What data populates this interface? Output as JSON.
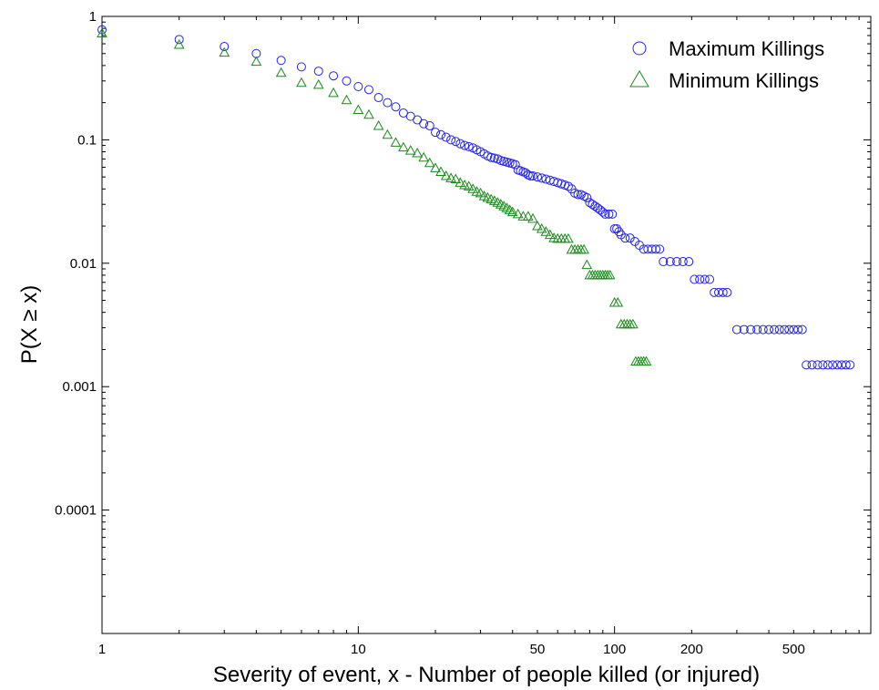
{
  "chart_data": {
    "type": "scatter",
    "xscale": "log",
    "yscale": "log",
    "xlim": [
      1,
      1000
    ],
    "ylim": [
      1e-05,
      1
    ],
    "xlabel": "Severity of event, x - Number of people killed (or injured)",
    "ylabel": "P(X ≥ x)",
    "x_ticks": [
      {
        "value": 1,
        "label": "1"
      },
      {
        "value": 10,
        "label": "10"
      },
      {
        "value": 50,
        "label": "50"
      },
      {
        "value": 100,
        "label": "100"
      },
      {
        "value": 200,
        "label": "200"
      },
      {
        "value": 500,
        "label": "500"
      }
    ],
    "y_ticks": [
      {
        "value": 1,
        "label": "1"
      },
      {
        "value": 0.1,
        "label": "0.1"
      },
      {
        "value": 0.01,
        "label": "0.01"
      },
      {
        "value": 0.001,
        "label": "0.001"
      },
      {
        "value": 0.0001,
        "label": "0.0001"
      }
    ],
    "legend_position": "top-right",
    "series": [
      {
        "name": "Maximum Killings",
        "marker": "circle",
        "color": "#2424e0",
        "points": [
          [
            1,
            0.78
          ],
          [
            2,
            0.65
          ],
          [
            3,
            0.57
          ],
          [
            4,
            0.5
          ],
          [
            5,
            0.44
          ],
          [
            6,
            0.39
          ],
          [
            7,
            0.36
          ],
          [
            8,
            0.33
          ],
          [
            9,
            0.3
          ],
          [
            10,
            0.27
          ],
          [
            11,
            0.255
          ],
          [
            12,
            0.22
          ],
          [
            13,
            0.2
          ],
          [
            14,
            0.185
          ],
          [
            15,
            0.165
          ],
          [
            16,
            0.155
          ],
          [
            17,
            0.145
          ],
          [
            18,
            0.135
          ],
          [
            19,
            0.13
          ],
          [
            20,
            0.115
          ],
          [
            21,
            0.11
          ],
          [
            22,
            0.105
          ],
          [
            23,
            0.1
          ],
          [
            24,
            0.097
          ],
          [
            25,
            0.093
          ],
          [
            26,
            0.09
          ],
          [
            27,
            0.088
          ],
          [
            28,
            0.086
          ],
          [
            29,
            0.083
          ],
          [
            30,
            0.08
          ],
          [
            31,
            0.077
          ],
          [
            32,
            0.074
          ],
          [
            33,
            0.072
          ],
          [
            34,
            0.071
          ],
          [
            35,
            0.07
          ],
          [
            36,
            0.068
          ],
          [
            37,
            0.067
          ],
          [
            38,
            0.066
          ],
          [
            39,
            0.065
          ],
          [
            40,
            0.064
          ],
          [
            41,
            0.063
          ],
          [
            42,
            0.057
          ],
          [
            43,
            0.056
          ],
          [
            44,
            0.055
          ],
          [
            45,
            0.054
          ],
          [
            46,
            0.052
          ],
          [
            47,
            0.051
          ],
          [
            48,
            0.051
          ],
          [
            50,
            0.05
          ],
          [
            52,
            0.049
          ],
          [
            54,
            0.048
          ],
          [
            56,
            0.047
          ],
          [
            58,
            0.046
          ],
          [
            60,
            0.045
          ],
          [
            62,
            0.044
          ],
          [
            64,
            0.043
          ],
          [
            66,
            0.042
          ],
          [
            68,
            0.04
          ],
          [
            70,
            0.037
          ],
          [
            72,
            0.036
          ],
          [
            74,
            0.036
          ],
          [
            76,
            0.035
          ],
          [
            78,
            0.034
          ],
          [
            80,
            0.031
          ],
          [
            82,
            0.03
          ],
          [
            84,
            0.029
          ],
          [
            86,
            0.028
          ],
          [
            88,
            0.027
          ],
          [
            90,
            0.026
          ],
          [
            92,
            0.025
          ],
          [
            95,
            0.025
          ],
          [
            98,
            0.025
          ],
          [
            100,
            0.019
          ],
          [
            102,
            0.019
          ],
          [
            104,
            0.018
          ],
          [
            106,
            0.017
          ],
          [
            110,
            0.016
          ],
          [
            115,
            0.016
          ],
          [
            120,
            0.015
          ],
          [
            125,
            0.014
          ],
          [
            130,
            0.013
          ],
          [
            135,
            0.013
          ],
          [
            140,
            0.013
          ],
          [
            145,
            0.013
          ],
          [
            150,
            0.013
          ],
          [
            155,
            0.0103
          ],
          [
            165,
            0.0103
          ],
          [
            175,
            0.0103
          ],
          [
            185,
            0.0103
          ],
          [
            195,
            0.0103
          ],
          [
            205,
            0.0074
          ],
          [
            215,
            0.0074
          ],
          [
            225,
            0.0074
          ],
          [
            235,
            0.0074
          ],
          [
            245,
            0.0058
          ],
          [
            255,
            0.0058
          ],
          [
            265,
            0.0058
          ],
          [
            275,
            0.0058
          ],
          [
            300,
            0.0029
          ],
          [
            320,
            0.0029
          ],
          [
            340,
            0.0029
          ],
          [
            360,
            0.0029
          ],
          [
            380,
            0.0029
          ],
          [
            400,
            0.0029
          ],
          [
            420,
            0.0029
          ],
          [
            440,
            0.0029
          ],
          [
            460,
            0.0029
          ],
          [
            480,
            0.0029
          ],
          [
            500,
            0.0029
          ],
          [
            520,
            0.0029
          ],
          [
            540,
            0.0029
          ],
          [
            560,
            0.0015
          ],
          [
            590,
            0.0015
          ],
          [
            620,
            0.0015
          ],
          [
            650,
            0.0015
          ],
          [
            680,
            0.0015
          ],
          [
            710,
            0.0015
          ],
          [
            740,
            0.0015
          ],
          [
            770,
            0.0015
          ],
          [
            800,
            0.0015
          ],
          [
            830,
            0.0015
          ]
        ]
      },
      {
        "name": "Minimum Killings",
        "marker": "triangle",
        "color": "#1a8a1a",
        "points": [
          [
            1,
            0.73
          ],
          [
            2,
            0.59
          ],
          [
            3,
            0.51
          ],
          [
            4,
            0.43
          ],
          [
            5,
            0.35
          ],
          [
            6,
            0.29
          ],
          [
            7,
            0.28
          ],
          [
            8,
            0.24
          ],
          [
            9,
            0.21
          ],
          [
            10,
            0.175
          ],
          [
            11,
            0.16
          ],
          [
            12,
            0.13
          ],
          [
            13,
            0.11
          ],
          [
            14,
            0.095
          ],
          [
            15,
            0.087
          ],
          [
            16,
            0.082
          ],
          [
            17,
            0.078
          ],
          [
            18,
            0.072
          ],
          [
            19,
            0.065
          ],
          [
            20,
            0.059
          ],
          [
            21,
            0.055
          ],
          [
            22,
            0.051
          ],
          [
            23,
            0.049
          ],
          [
            24,
            0.048
          ],
          [
            25,
            0.045
          ],
          [
            26,
            0.043
          ],
          [
            27,
            0.042
          ],
          [
            28,
            0.04
          ],
          [
            29,
            0.038
          ],
          [
            30,
            0.037
          ],
          [
            31,
            0.035
          ],
          [
            32,
            0.034
          ],
          [
            33,
            0.033
          ],
          [
            34,
            0.032
          ],
          [
            35,
            0.031
          ],
          [
            36,
            0.03
          ],
          [
            37,
            0.029
          ],
          [
            38,
            0.028
          ],
          [
            39,
            0.027
          ],
          [
            40,
            0.026
          ],
          [
            42,
            0.025
          ],
          [
            44,
            0.024
          ],
          [
            46,
            0.024
          ],
          [
            48,
            0.023
          ],
          [
            50,
            0.02
          ],
          [
            52,
            0.019
          ],
          [
            54,
            0.018
          ],
          [
            56,
            0.017
          ],
          [
            58,
            0.016
          ],
          [
            60,
            0.0158
          ],
          [
            62,
            0.0158
          ],
          [
            64,
            0.0158
          ],
          [
            66,
            0.0158
          ],
          [
            68,
            0.0129
          ],
          [
            70,
            0.0129
          ],
          [
            72,
            0.0129
          ],
          [
            74,
            0.0129
          ],
          [
            76,
            0.0129
          ],
          [
            78,
            0.0097
          ],
          [
            80,
            0.008
          ],
          [
            82,
            0.008
          ],
          [
            84,
            0.008
          ],
          [
            86,
            0.008
          ],
          [
            88,
            0.008
          ],
          [
            90,
            0.008
          ],
          [
            92,
            0.008
          ],
          [
            94,
            0.008
          ],
          [
            96,
            0.008
          ],
          [
            100,
            0.0048
          ],
          [
            103,
            0.0048
          ],
          [
            106,
            0.0032
          ],
          [
            109,
            0.0032
          ],
          [
            112,
            0.0032
          ],
          [
            115,
            0.0032
          ],
          [
            118,
            0.0032
          ],
          [
            121,
            0.0016
          ],
          [
            124,
            0.0016
          ],
          [
            127,
            0.0016
          ],
          [
            130,
            0.0016
          ],
          [
            133,
            0.0016
          ]
        ]
      }
    ]
  }
}
